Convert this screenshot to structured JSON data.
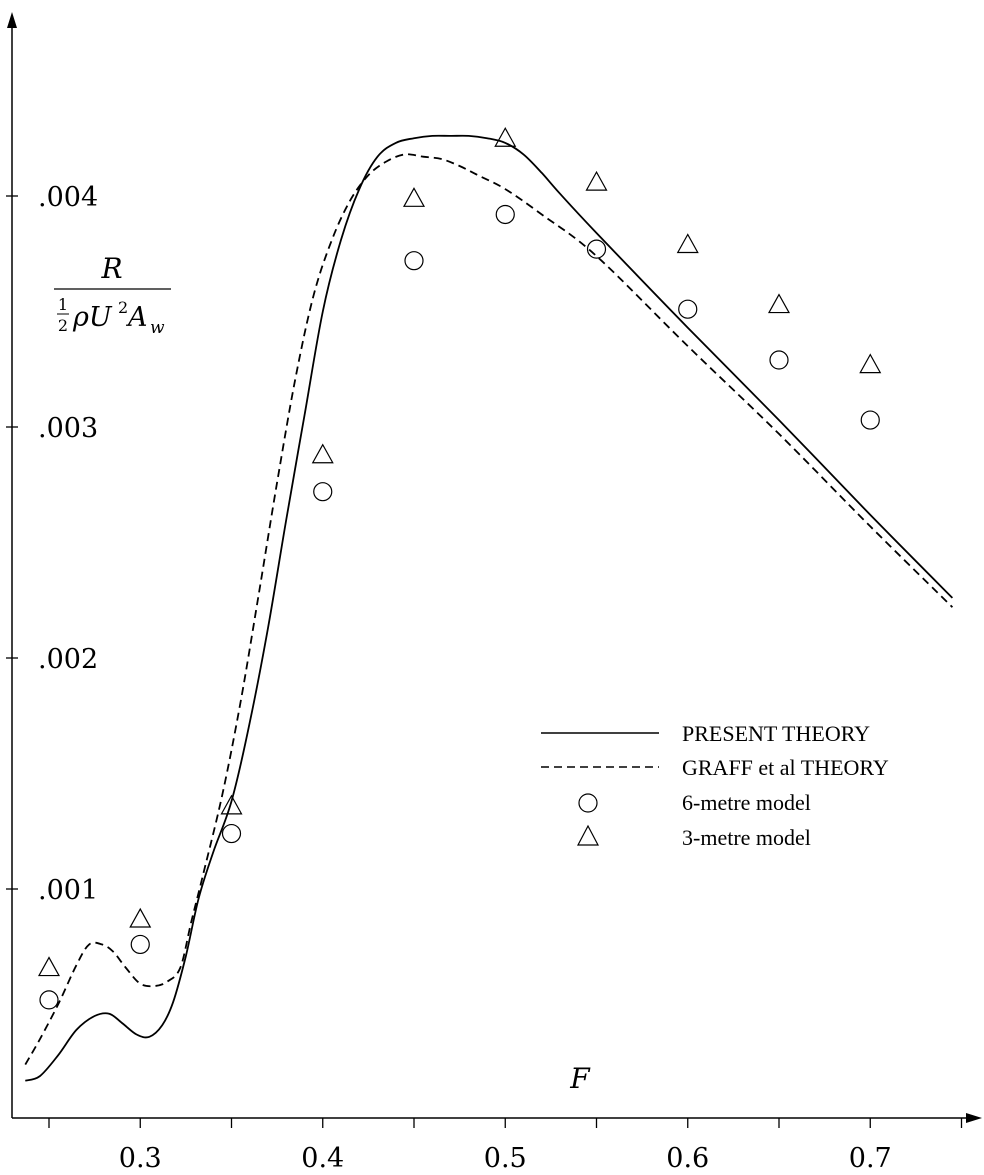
{
  "chart_data": {
    "type": "line",
    "xlabel": "F",
    "ylabel": {
      "numerator": "R",
      "denominator_fraction_num": "1",
      "denominator_fraction_den": "2",
      "denominator_rest": "ρU",
      "denominator_sup": "2",
      "denominator_A": "A",
      "denominator_sub": "w"
    },
    "xlim": [
      0.23,
      0.755
    ],
    "ylim": [
      0.00017,
      0.0045
    ],
    "x_ticks": [
      0.25,
      0.3,
      0.35,
      0.4,
      0.45,
      0.5,
      0.55,
      0.6,
      0.65,
      0.7,
      0.75
    ],
    "x_tick_labels": [
      {
        "value": 0.3,
        "label": "0.3"
      },
      {
        "value": 0.4,
        "label": "0.4"
      },
      {
        "value": 0.5,
        "label": "0.5"
      },
      {
        "value": 0.6,
        "label": "0.6"
      },
      {
        "value": 0.7,
        "label": "0.7"
      }
    ],
    "y_tick_labels": [
      {
        "value": 0.001,
        "label": ".001"
      },
      {
        "value": 0.002,
        "label": ".002"
      },
      {
        "value": 0.003,
        "label": ".003"
      },
      {
        "value": 0.004,
        "label": ".004"
      }
    ],
    "legend_position": "center-right",
    "series": [
      {
        "name": "PRESENT THEORY",
        "style": "solid",
        "x": [
          0.237,
          0.245,
          0.255,
          0.265,
          0.275,
          0.283,
          0.29,
          0.298,
          0.305,
          0.312,
          0.318,
          0.325,
          0.332,
          0.34,
          0.35,
          0.36,
          0.37,
          0.38,
          0.39,
          0.4,
          0.41,
          0.42,
          0.43,
          0.44,
          0.45,
          0.46,
          0.47,
          0.48,
          0.49,
          0.5,
          0.51,
          0.52,
          0.53,
          0.55,
          0.6,
          0.65,
          0.7,
          0.745
        ],
        "y": [
          0.00017,
          0.00019,
          0.00028,
          0.00039,
          0.00045,
          0.00046,
          0.00042,
          0.00037,
          0.00036,
          0.00041,
          0.00051,
          0.00071,
          0.00096,
          0.00116,
          0.00138,
          0.00172,
          0.00213,
          0.0026,
          0.00305,
          0.0035,
          0.00381,
          0.00403,
          0.00417,
          0.00423,
          0.00425,
          0.00426,
          0.00426,
          0.00426,
          0.00425,
          0.00423,
          0.00418,
          0.0041,
          0.00401,
          0.00384,
          0.00343,
          0.00303,
          0.00262,
          0.00226
        ]
      },
      {
        "name": "GRAFF et al THEORY",
        "style": "dashed",
        "x": [
          0.237,
          0.245,
          0.255,
          0.265,
          0.272,
          0.279,
          0.285,
          0.292,
          0.3,
          0.308,
          0.315,
          0.322,
          0.328,
          0.335,
          0.345,
          0.355,
          0.365,
          0.375,
          0.385,
          0.395,
          0.405,
          0.415,
          0.425,
          0.435,
          0.445,
          0.455,
          0.465,
          0.475,
          0.485,
          0.5,
          0.52,
          0.55,
          0.6,
          0.65,
          0.7,
          0.745
        ],
        "y": [
          0.00024,
          0.00035,
          0.0005,
          0.00067,
          0.00076,
          0.00076,
          0.00073,
          0.00066,
          0.00059,
          0.00058,
          0.0006,
          0.00066,
          0.00086,
          0.00108,
          0.00141,
          0.00181,
          0.00228,
          0.00276,
          0.00321,
          0.00357,
          0.00381,
          0.00398,
          0.00409,
          0.00415,
          0.00418,
          0.00417,
          0.00416,
          0.00413,
          0.00409,
          0.00403,
          0.00392,
          0.00374,
          0.00335,
          0.00297,
          0.00257,
          0.00222
        ]
      },
      {
        "name": "6-metre model",
        "style": "circle",
        "x": [
          0.25,
          0.3,
          0.35,
          0.4,
          0.45,
          0.5,
          0.55,
          0.6,
          0.65,
          0.7
        ],
        "y": [
          0.00052,
          0.00076,
          0.00124,
          0.00272,
          0.00372,
          0.00392,
          0.00377,
          0.00351,
          0.00329,
          0.00303
        ]
      },
      {
        "name": "3-metre model",
        "style": "triangle",
        "x": [
          0.25,
          0.3,
          0.35,
          0.4,
          0.45,
          0.5,
          0.55,
          0.6,
          0.65,
          0.7
        ],
        "y": [
          0.00066,
          0.00087,
          0.00136,
          0.00288,
          0.00399,
          0.00425,
          0.00406,
          0.00379,
          0.00353,
          0.00327
        ]
      }
    ]
  }
}
